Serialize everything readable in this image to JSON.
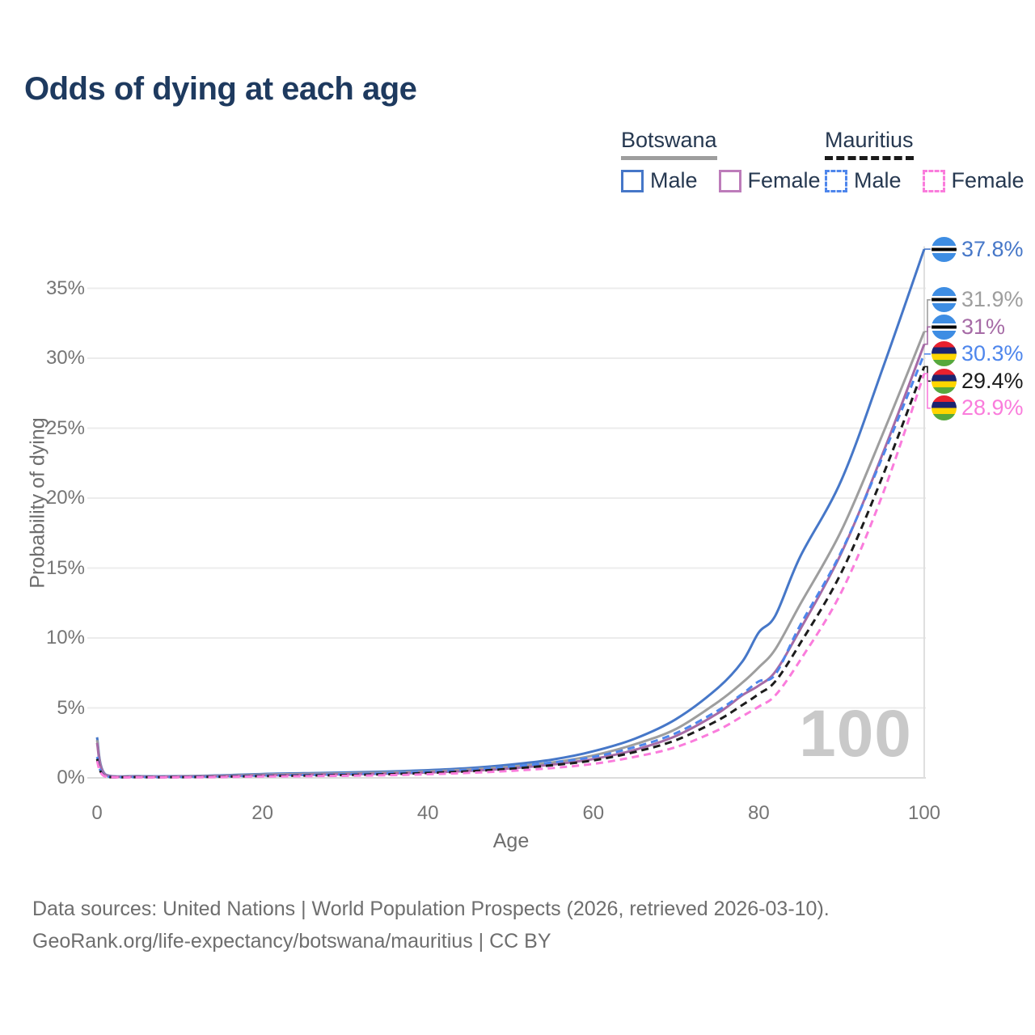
{
  "title": "Odds of dying at each age",
  "watermark": "100",
  "legend": {
    "groups": [
      {
        "name": "Botswana",
        "line_style": "solid",
        "line_color": "#9e9e9e",
        "items": [
          {
            "label": "Male",
            "swatch_color": "#4677c8",
            "swatch_style": "solid"
          },
          {
            "label": "Female",
            "swatch_color": "#bd7cba",
            "swatch_style": "solid"
          }
        ]
      },
      {
        "name": "Mauritius",
        "line_style": "dashed",
        "line_color": "#1a1a1a",
        "items": [
          {
            "label": "Male",
            "swatch_color": "#4e86ec",
            "swatch_style": "dashed"
          },
          {
            "label": "Female",
            "swatch_color": "#fa7cdc",
            "swatch_style": "dashed"
          }
        ]
      }
    ]
  },
  "chart_data": {
    "type": "line",
    "title": "Odds of dying at each age",
    "xlabel": "Age",
    "ylabel": "Probability of dying",
    "xlim": [
      0,
      100
    ],
    "ylim_percent": [
      0,
      38
    ],
    "x_ticks": [
      0,
      20,
      40,
      60,
      80,
      100
    ],
    "y_ticks_percent": [
      0,
      5,
      10,
      15,
      20,
      25,
      30,
      35
    ],
    "grid": "horizontal, plus vertical line at age 100",
    "ages": [
      0,
      1,
      5,
      10,
      15,
      20,
      25,
      30,
      35,
      40,
      45,
      50,
      55,
      60,
      65,
      70,
      75,
      78,
      80,
      82,
      85,
      90,
      95,
      100
    ],
    "series": [
      {
        "name": "Botswana Male",
        "country": "Botswana",
        "sex": "Male",
        "color": "#4677c8",
        "dash": false,
        "end_label": "37.8%",
        "end_value": 37.8,
        "values": [
          2.9,
          0.25,
          0.12,
          0.12,
          0.18,
          0.28,
          0.33,
          0.38,
          0.45,
          0.55,
          0.7,
          0.95,
          1.3,
          1.9,
          2.8,
          4.2,
          6.4,
          8.3,
          10.4,
          11.6,
          15.8,
          21.3,
          29.3,
          37.8
        ]
      },
      {
        "name": "Botswana Both sexes",
        "country": "Botswana",
        "sex": "Both",
        "color": "#9e9e9e",
        "dash": false,
        "end_label": "31.9%",
        "end_value": 31.9,
        "values": [
          2.7,
          0.22,
          0.1,
          0.1,
          0.15,
          0.23,
          0.28,
          0.32,
          0.38,
          0.46,
          0.6,
          0.8,
          1.1,
          1.6,
          2.4,
          3.5,
          5.4,
          6.8,
          7.9,
          9.2,
          12.4,
          17.7,
          24.6,
          31.9
        ]
      },
      {
        "name": "Botswana Female",
        "country": "Botswana",
        "sex": "Female",
        "color": "#a66ba6",
        "dash": false,
        "end_label": "31%",
        "end_value": 31.0,
        "values": [
          2.5,
          0.2,
          0.09,
          0.09,
          0.12,
          0.18,
          0.22,
          0.26,
          0.3,
          0.38,
          0.5,
          0.68,
          0.95,
          1.35,
          2.0,
          3.0,
          4.6,
          5.9,
          6.6,
          7.6,
          10.6,
          16.1,
          23.2,
          31.0
        ]
      },
      {
        "name": "Mauritius Male",
        "country": "Mauritius",
        "sex": "Male",
        "color": "#4e86ec",
        "dash": true,
        "end_label": "30.3%",
        "end_value": 30.3,
        "values": [
          1.5,
          0.12,
          0.06,
          0.06,
          0.1,
          0.16,
          0.2,
          0.26,
          0.33,
          0.44,
          0.58,
          0.8,
          1.1,
          1.5,
          2.2,
          3.2,
          4.8,
          6.0,
          6.9,
          7.4,
          10.9,
          16.2,
          23.0,
          30.3
        ]
      },
      {
        "name": "Mauritius Both sexes",
        "country": "Mauritius",
        "sex": "Both",
        "color": "#1c1c1c",
        "dash": true,
        "end_label": "29.4%",
        "end_value": 29.4,
        "values": [
          1.35,
          0.1,
          0.05,
          0.05,
          0.08,
          0.13,
          0.16,
          0.2,
          0.26,
          0.35,
          0.47,
          0.65,
          0.9,
          1.25,
          1.85,
          2.7,
          4.1,
          5.2,
          6.0,
          6.9,
          9.6,
          14.7,
          21.6,
          29.4
        ]
      },
      {
        "name": "Mauritius Female",
        "country": "Mauritius",
        "sex": "Female",
        "color": "#fa7cdc",
        "dash": true,
        "end_label": "28.9%",
        "end_value": 28.9,
        "values": [
          1.2,
          0.09,
          0.04,
          0.04,
          0.06,
          0.1,
          0.12,
          0.15,
          0.19,
          0.26,
          0.36,
          0.5,
          0.7,
          1.0,
          1.5,
          2.2,
          3.4,
          4.4,
          5.1,
          5.9,
          8.4,
          13.3,
          20.3,
          28.9
        ]
      }
    ]
  },
  "footer": {
    "line1": "Data sources: United Nations | World Population Prospects (2026, retrieved 2026-03-10).",
    "line2": "GeoRank.org/life-expectancy/botswana/mauritius | CC BY"
  }
}
